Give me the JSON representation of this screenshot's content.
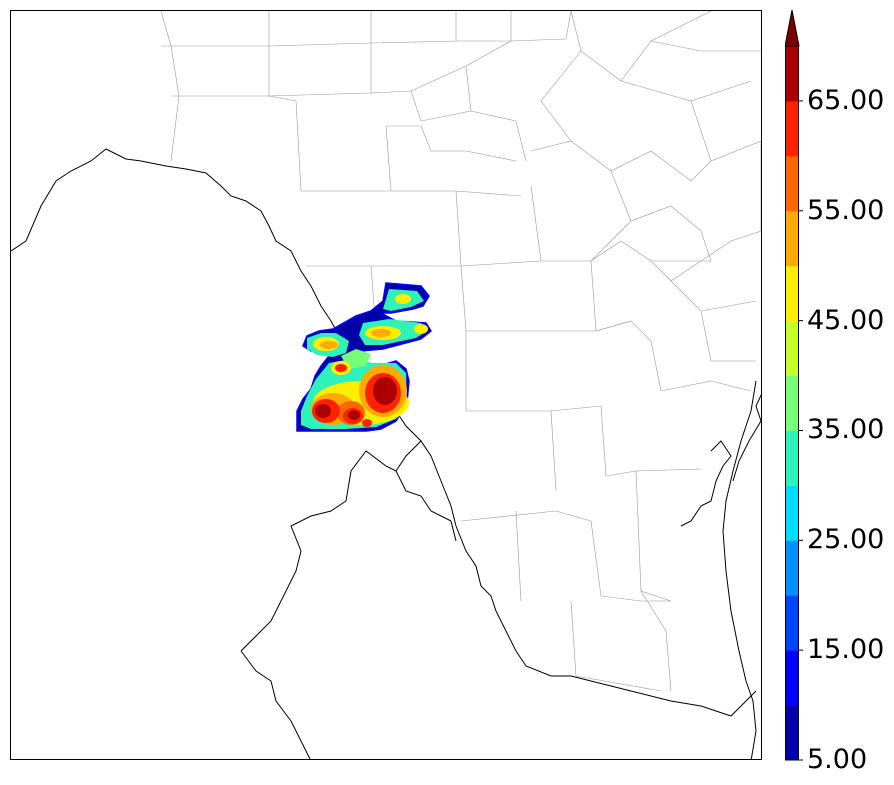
{
  "colorbar": {
    "tick_labels": [
      "5.00",
      "15.00",
      "25.00",
      "35.00",
      "45.00",
      "55.00",
      "65.00"
    ],
    "levels": [
      5,
      10,
      15,
      20,
      25,
      30,
      35,
      40,
      45,
      50,
      55,
      60,
      65,
      70
    ],
    "colors": [
      "#0000aa",
      "#0000ff",
      "#0044ff",
      "#0090ff",
      "#00dcff",
      "#2ef2b8",
      "#77ff77",
      "#c6ff2a",
      "#ffee00",
      "#ffaa00",
      "#ff6600",
      "#ff2200",
      "#aa0000"
    ],
    "extend_color": "#7a0000",
    "extend": "max"
  },
  "map": {
    "border_color": "#000000",
    "coastline_color": "#000000",
    "county_line_color": "#888888"
  }
}
